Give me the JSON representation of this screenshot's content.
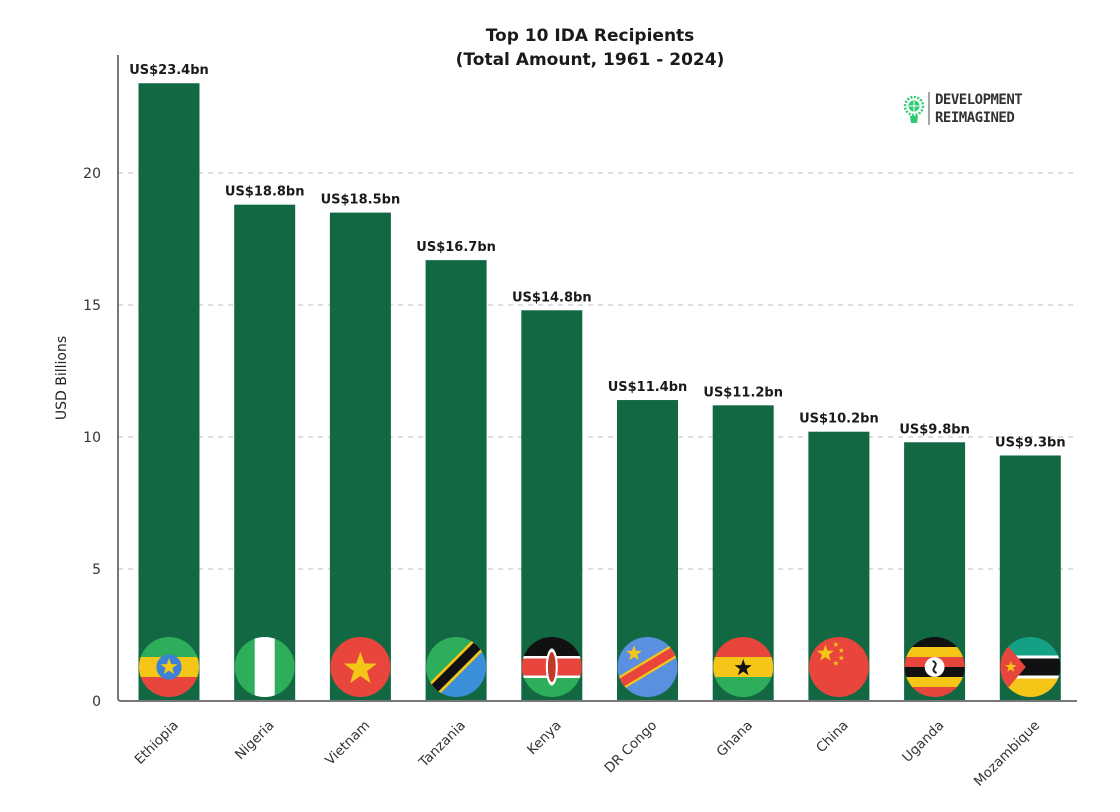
{
  "chart_data": {
    "type": "bar",
    "title_lines": [
      "Top 10 IDA Recipients",
      "(Total Amount, 1961 - 2024)"
    ],
    "xlabel": "",
    "ylabel": "USD Billions",
    "ylim": [
      0,
      24
    ],
    "yticks": [
      0,
      5,
      10,
      15,
      20
    ],
    "grid": "horizontal-dashed",
    "bar_color": "#136844",
    "categories": [
      "Ethiopia",
      "Nigeria",
      "Vietnam",
      "Tanzania",
      "Kenya",
      "DR Congo",
      "Ghana",
      "China",
      "Uganda",
      "Mozambique"
    ],
    "values": [
      23.4,
      18.8,
      18.5,
      16.7,
      14.8,
      11.4,
      11.2,
      10.2,
      9.8,
      9.3
    ],
    "data_labels": [
      "US$23.4bn",
      "US$18.8bn",
      "US$18.5bn",
      "US$16.7bn",
      "US$14.8bn",
      "US$11.4bn",
      "US$11.2bn",
      "US$10.2bn",
      "US$9.8bn",
      "US$9.3bn"
    ],
    "flag_icons": [
      "ethiopia-flag-icon",
      "nigeria-flag-icon",
      "vietnam-flag-icon",
      "tanzania-flag-icon",
      "kenya-flag-icon",
      "dr-congo-flag-icon",
      "ghana-flag-icon",
      "china-flag-icon",
      "uganda-flag-icon",
      "mozambique-flag-icon"
    ]
  },
  "branding": {
    "logo_line1": "DEVELOPMENT",
    "logo_line2": "REIMAGINED",
    "logo_icon": "lightbulb-globe-icon",
    "logo_color": "#2ecc71"
  }
}
